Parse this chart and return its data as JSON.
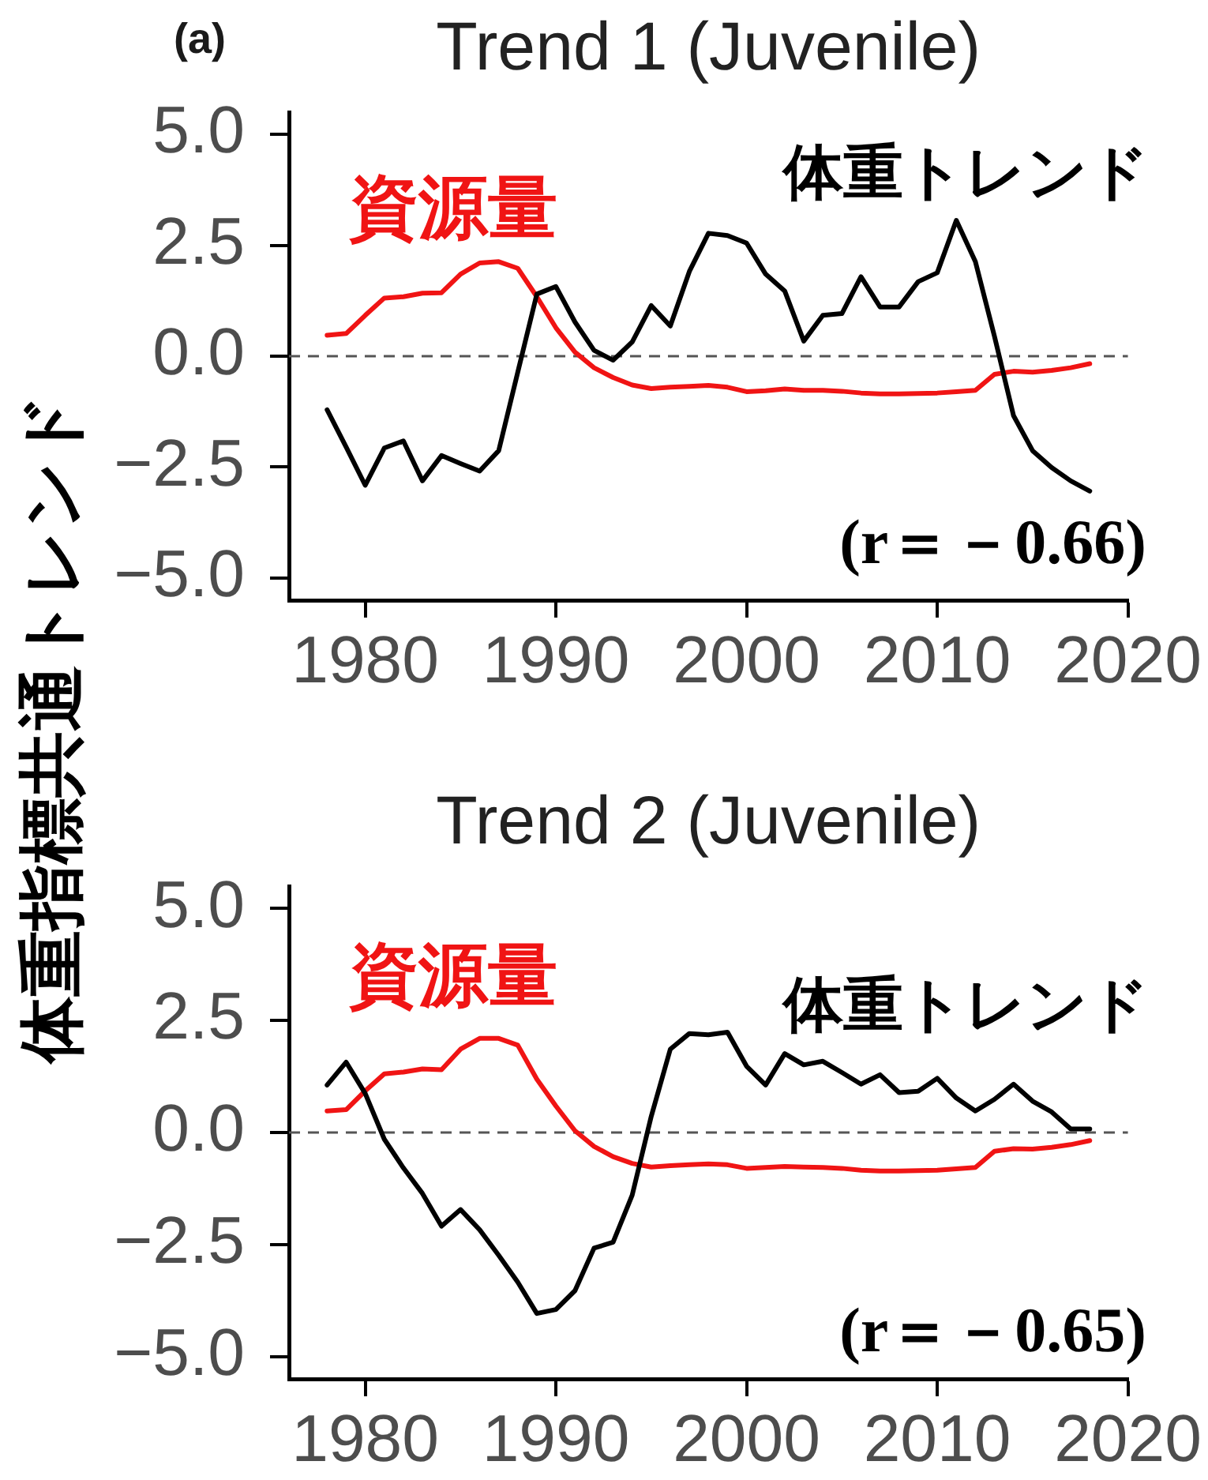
{
  "chart_data": [
    {
      "type": "line",
      "title": "Trend 1 (Juvenile)",
      "ylabel": "体重指標共通トレンド",
      "annotations": [
        "(a)",
        "(r＝－0.66)"
      ],
      "x": [
        1978,
        1979,
        1980,
        1981,
        1982,
        1983,
        1984,
        1985,
        1986,
        1987,
        1988,
        1989,
        1990,
        1991,
        1992,
        1993,
        1994,
        1995,
        1996,
        1997,
        1998,
        1999,
        2000,
        2001,
        2002,
        2003,
        2004,
        2005,
        2006,
        2007,
        2008,
        2009,
        2010,
        2011,
        2012,
        2013,
        2014,
        2015,
        2016,
        2017,
        2018
      ],
      "series": [
        {
          "name": "体重トレンド",
          "color": "#000000",
          "values": [
            -1.21,
            -2.05,
            -2.91,
            -2.07,
            -1.91,
            -2.81,
            -2.24,
            -2.42,
            -2.59,
            -2.13,
            -0.36,
            1.4,
            1.57,
            0.77,
            0.13,
            -0.09,
            0.32,
            1.14,
            0.68,
            1.91,
            2.77,
            2.72,
            2.55,
            1.85,
            1.47,
            0.34,
            0.92,
            0.96,
            1.79,
            1.11,
            1.11,
            1.68,
            1.88,
            3.06,
            2.13,
            0.45,
            -1.34,
            -2.13,
            -2.51,
            -2.81,
            -3.04
          ]
        },
        {
          "name": "資源量",
          "color": "#f01414",
          "values": [
            0.47,
            0.51,
            0.92,
            1.31,
            1.34,
            1.42,
            1.43,
            1.85,
            2.1,
            2.13,
            1.98,
            1.34,
            0.64,
            0.09,
            -0.26,
            -0.48,
            -0.65,
            -0.73,
            -0.7,
            -0.68,
            -0.66,
            -0.7,
            -0.8,
            -0.78,
            -0.74,
            -0.77,
            -0.77,
            -0.79,
            -0.83,
            -0.85,
            -0.85,
            -0.84,
            -0.83,
            -0.8,
            -0.77,
            -0.41,
            -0.34,
            -0.36,
            -0.32,
            -0.26,
            -0.17
          ]
        }
      ],
      "xlim": [
        1976,
        2020
      ],
      "xticks": [
        1980,
        1990,
        2000,
        2010,
        2020
      ],
      "ylim": [
        -5.5,
        5.5
      ],
      "yticks": [
        {
          "value": -5,
          "label": "−5.0"
        },
        {
          "value": -2.5,
          "label": "−2.5"
        },
        {
          "value": 0,
          "label": "0.0"
        },
        {
          "value": 2.5,
          "label": "2.5"
        },
        {
          "value": 5,
          "label": "5.0"
        }
      ],
      "ref_lines": [
        {
          "axis": "y",
          "value": 0,
          "color": "#555555",
          "line_style": "dashed"
        }
      ]
    },
    {
      "type": "line",
      "title": "Trend 2 (Juvenile)",
      "annotations": [
        "(r＝－0.65)"
      ],
      "x": [
        1978,
        1979,
        1980,
        1981,
        1982,
        1983,
        1984,
        1985,
        1986,
        1987,
        1988,
        1989,
        1990,
        1991,
        1992,
        1993,
        1994,
        1995,
        1996,
        1997,
        1998,
        1999,
        2000,
        2001,
        2002,
        2003,
        2004,
        2005,
        2006,
        2007,
        2008,
        2009,
        2010,
        2011,
        2012,
        2013,
        2014,
        2015,
        2016,
        2017,
        2018
      ],
      "series": [
        {
          "name": "体重トレンド",
          "color": "#000000",
          "values": [
            1.06,
            1.57,
            0.87,
            -0.15,
            -0.79,
            -1.36,
            -2.09,
            -1.72,
            -2.17,
            -2.74,
            -3.34,
            -4.04,
            -3.95,
            -3.53,
            -2.58,
            -2.45,
            -1.4,
            0.36,
            1.86,
            2.21,
            2.18,
            2.24,
            1.48,
            1.06,
            1.76,
            1.51,
            1.59,
            1.34,
            1.08,
            1.29,
            0.89,
            0.92,
            1.21,
            0.77,
            0.48,
            0.74,
            1.08,
            0.7,
            0.46,
            0.08,
            0.08
          ]
        },
        {
          "name": "資源量",
          "color": "#f01414",
          "values": [
            0.48,
            0.51,
            0.93,
            1.31,
            1.35,
            1.42,
            1.4,
            1.86,
            2.1,
            2.1,
            1.95,
            1.19,
            0.59,
            0.04,
            -0.31,
            -0.54,
            -0.69,
            -0.77,
            -0.74,
            -0.72,
            -0.7,
            -0.72,
            -0.8,
            -0.78,
            -0.76,
            -0.77,
            -0.78,
            -0.8,
            -0.84,
            -0.86,
            -0.86,
            -0.85,
            -0.84,
            -0.81,
            -0.78,
            -0.42,
            -0.36,
            -0.37,
            -0.33,
            -0.27,
            -0.18
          ]
        }
      ],
      "xlim": [
        1976,
        2020
      ],
      "xticks": [
        1980,
        1990,
        2000,
        2010,
        2020
      ],
      "ylim": [
        -5.5,
        5.5
      ],
      "yticks": [
        {
          "value": -5,
          "label": "−5.0"
        },
        {
          "value": -2.5,
          "label": "−2.5"
        },
        {
          "value": 0,
          "label": "0.0"
        },
        {
          "value": 2.5,
          "label": "2.5"
        },
        {
          "value": 5,
          "label": "5.0"
        }
      ],
      "ref_lines": [
        {
          "axis": "y",
          "value": 0,
          "color": "#555555",
          "line_style": "dashed"
        }
      ]
    }
  ]
}
